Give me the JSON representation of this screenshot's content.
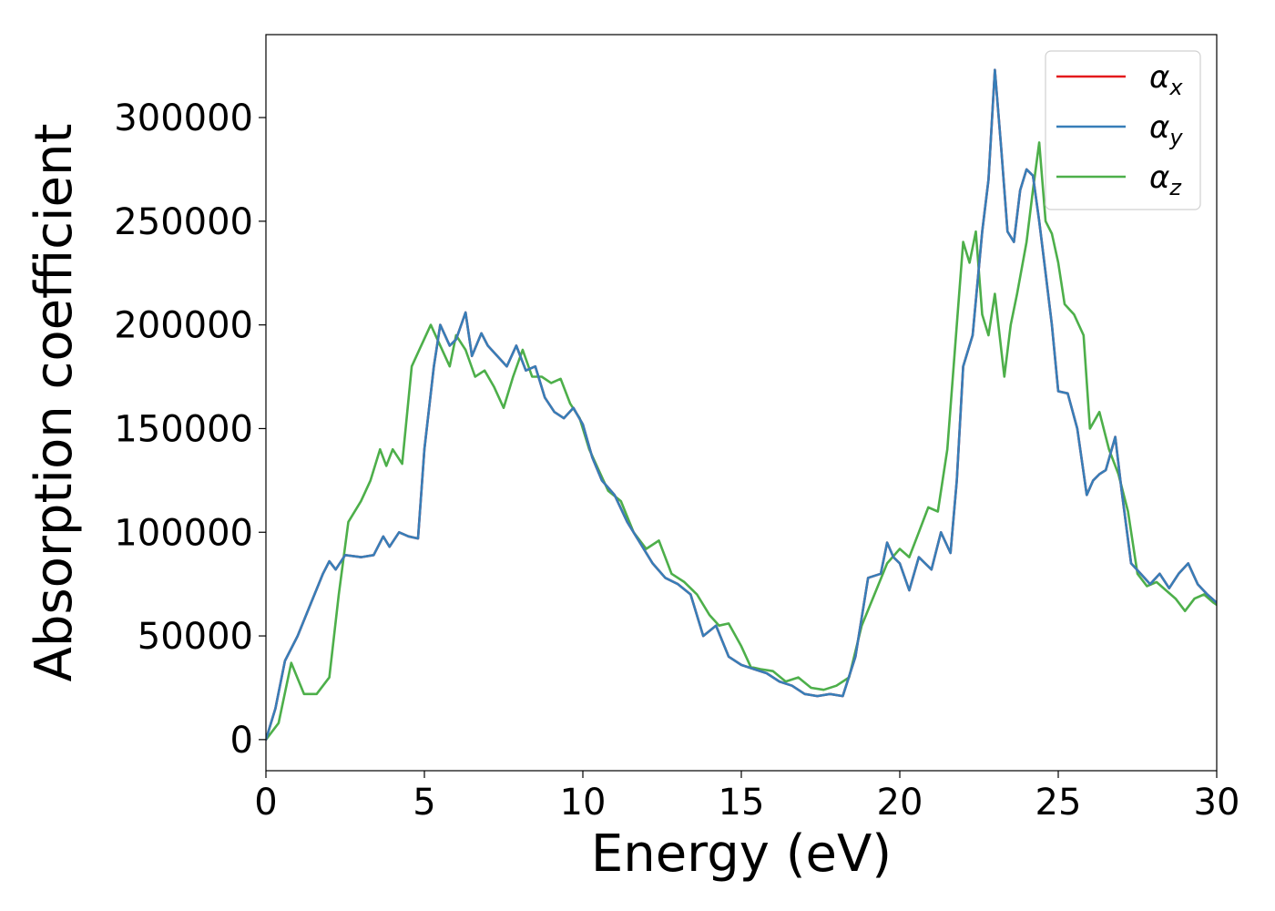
{
  "chart_data": {
    "type": "line",
    "title": "",
    "xlabel": "Energy (eV)",
    "ylabel": "Absorption coefficient",
    "xlim": [
      0,
      30
    ],
    "ylim": [
      -15000,
      340000
    ],
    "xticks": [
      0,
      5,
      10,
      15,
      20,
      25,
      30
    ],
    "xtick_labels": [
      "0",
      "5",
      "10",
      "15",
      "20",
      "25",
      "30"
    ],
    "yticks": [
      0,
      50000,
      100000,
      150000,
      200000,
      250000,
      300000
    ],
    "ytick_labels": [
      "0",
      "50000",
      "100000",
      "150000",
      "200000",
      "250000",
      "300000"
    ],
    "grid": false,
    "legend_position": "top-right",
    "series": [
      {
        "name": "α",
        "subscript": "x",
        "color": "#e41a1c",
        "x": [
          0,
          0.3,
          0.6,
          1.0,
          1.4,
          1.8,
          2.0,
          2.2,
          2.5,
          3.0,
          3.4,
          3.7,
          3.9,
          4.2,
          4.5,
          4.8,
          5.0,
          5.3,
          5.5,
          5.8,
          6.0,
          6.3,
          6.5,
          6.8,
          7.0,
          7.3,
          7.6,
          7.9,
          8.2,
          8.5,
          8.8,
          9.1,
          9.4,
          9.7,
          10.0,
          10.3,
          10.6,
          11.0,
          11.4,
          11.8,
          12.2,
          12.6,
          13.0,
          13.4,
          13.8,
          14.2,
          14.6,
          15.0,
          15.4,
          15.8,
          16.2,
          16.6,
          17.0,
          17.4,
          17.8,
          18.2,
          18.6,
          19.0,
          19.4,
          19.6,
          19.8,
          20.0,
          20.3,
          20.6,
          21.0,
          21.3,
          21.6,
          21.8,
          22.0,
          22.3,
          22.6,
          22.8,
          23.0,
          23.2,
          23.4,
          23.6,
          23.8,
          24.0,
          24.2,
          24.4,
          24.6,
          24.8,
          25.0,
          25.3,
          25.6,
          25.9,
          26.1,
          26.3,
          26.5,
          26.8,
          27.0,
          27.3,
          27.6,
          27.9,
          28.2,
          28.5,
          28.8,
          29.1,
          29.4,
          29.7,
          30.0
        ],
        "values": [
          0,
          15000,
          38000,
          50000,
          65000,
          80000,
          86000,
          82000,
          89000,
          88000,
          89000,
          98000,
          93000,
          100000,
          98000,
          97000,
          140000,
          180000,
          200000,
          190000,
          193000,
          206000,
          185000,
          196000,
          190000,
          185000,
          180000,
          190000,
          178000,
          180000,
          165000,
          158000,
          155000,
          160000,
          152000,
          136000,
          125000,
          118000,
          105000,
          95000,
          85000,
          78000,
          75000,
          70000,
          50000,
          55000,
          40000,
          36000,
          34000,
          32000,
          28000,
          26000,
          22000,
          21000,
          22000,
          21000,
          40000,
          78000,
          80000,
          95000,
          88000,
          85000,
          72000,
          88000,
          82000,
          100000,
          90000,
          125000,
          180000,
          195000,
          245000,
          270000,
          323000,
          285000,
          245000,
          240000,
          265000,
          275000,
          272000,
          250000,
          225000,
          200000,
          168000,
          167000,
          150000,
          118000,
          125000,
          128000,
          130000,
          146000,
          120000,
          85000,
          80000,
          75000,
          80000,
          73000,
          80000,
          85000,
          75000,
          70000,
          66000
        ]
      },
      {
        "name": "α",
        "subscript": "y",
        "color": "#377eb8",
        "x": [
          0,
          0.3,
          0.6,
          1.0,
          1.4,
          1.8,
          2.0,
          2.2,
          2.5,
          3.0,
          3.4,
          3.7,
          3.9,
          4.2,
          4.5,
          4.8,
          5.0,
          5.3,
          5.5,
          5.8,
          6.0,
          6.3,
          6.5,
          6.8,
          7.0,
          7.3,
          7.6,
          7.9,
          8.2,
          8.5,
          8.8,
          9.1,
          9.4,
          9.7,
          10.0,
          10.3,
          10.6,
          11.0,
          11.4,
          11.8,
          12.2,
          12.6,
          13.0,
          13.4,
          13.8,
          14.2,
          14.6,
          15.0,
          15.4,
          15.8,
          16.2,
          16.6,
          17.0,
          17.4,
          17.8,
          18.2,
          18.6,
          19.0,
          19.4,
          19.6,
          19.8,
          20.0,
          20.3,
          20.6,
          21.0,
          21.3,
          21.6,
          21.8,
          22.0,
          22.3,
          22.6,
          22.8,
          23.0,
          23.2,
          23.4,
          23.6,
          23.8,
          24.0,
          24.2,
          24.4,
          24.6,
          24.8,
          25.0,
          25.3,
          25.6,
          25.9,
          26.1,
          26.3,
          26.5,
          26.8,
          27.0,
          27.3,
          27.6,
          27.9,
          28.2,
          28.5,
          28.8,
          29.1,
          29.4,
          29.7,
          30.0
        ],
        "values": [
          0,
          15000,
          38000,
          50000,
          65000,
          80000,
          86000,
          82000,
          89000,
          88000,
          89000,
          98000,
          93000,
          100000,
          98000,
          97000,
          140000,
          180000,
          200000,
          190000,
          193000,
          206000,
          185000,
          196000,
          190000,
          185000,
          180000,
          190000,
          178000,
          180000,
          165000,
          158000,
          155000,
          160000,
          152000,
          136000,
          125000,
          118000,
          105000,
          95000,
          85000,
          78000,
          75000,
          70000,
          50000,
          55000,
          40000,
          36000,
          34000,
          32000,
          28000,
          26000,
          22000,
          21000,
          22000,
          21000,
          40000,
          78000,
          80000,
          95000,
          88000,
          85000,
          72000,
          88000,
          82000,
          100000,
          90000,
          125000,
          180000,
          195000,
          245000,
          270000,
          323000,
          285000,
          245000,
          240000,
          265000,
          275000,
          272000,
          250000,
          225000,
          200000,
          168000,
          167000,
          150000,
          118000,
          125000,
          128000,
          130000,
          146000,
          120000,
          85000,
          80000,
          75000,
          80000,
          73000,
          80000,
          85000,
          75000,
          70000,
          66000
        ]
      },
      {
        "name": "α",
        "subscript": "z",
        "color": "#4daf4a",
        "x": [
          0,
          0.4,
          0.8,
          1.2,
          1.6,
          2.0,
          2.3,
          2.6,
          3.0,
          3.3,
          3.6,
          3.8,
          4.0,
          4.3,
          4.6,
          4.9,
          5.2,
          5.5,
          5.8,
          6.0,
          6.3,
          6.6,
          6.9,
          7.2,
          7.5,
          7.8,
          8.1,
          8.4,
          8.7,
          9.0,
          9.3,
          9.6,
          9.9,
          10.2,
          10.5,
          10.8,
          11.2,
          11.6,
          12.0,
          12.4,
          12.8,
          13.2,
          13.6,
          14.0,
          14.3,
          14.6,
          15.0,
          15.3,
          15.6,
          16.0,
          16.4,
          16.8,
          17.2,
          17.6,
          18.0,
          18.4,
          18.8,
          19.2,
          19.6,
          20.0,
          20.3,
          20.6,
          20.9,
          21.2,
          21.5,
          21.8,
          22.0,
          22.2,
          22.4,
          22.6,
          22.8,
          23.0,
          23.3,
          23.5,
          23.7,
          24.0,
          24.2,
          24.4,
          24.6,
          24.8,
          25.0,
          25.2,
          25.5,
          25.8,
          26.0,
          26.3,
          26.6,
          26.9,
          27.2,
          27.5,
          27.8,
          28.1,
          28.4,
          28.7,
          29.0,
          29.3,
          29.6,
          29.9,
          30.0
        ],
        "values": [
          0,
          8000,
          37000,
          22000,
          22000,
          30000,
          70000,
          105000,
          115000,
          125000,
          140000,
          132000,
          140000,
          133000,
          180000,
          190000,
          200000,
          190000,
          180000,
          195000,
          188000,
          175000,
          178000,
          170000,
          160000,
          175000,
          188000,
          175000,
          175000,
          172000,
          174000,
          162000,
          155000,
          140000,
          130000,
          120000,
          115000,
          100000,
          92000,
          96000,
          80000,
          76000,
          70000,
          60000,
          55000,
          56000,
          45000,
          35000,
          34000,
          33000,
          28000,
          30000,
          25000,
          24000,
          26000,
          30000,
          55000,
          70000,
          85000,
          92000,
          88000,
          100000,
          112000,
          110000,
          140000,
          200000,
          240000,
          230000,
          245000,
          205000,
          195000,
          215000,
          175000,
          200000,
          215000,
          240000,
          265000,
          288000,
          250000,
          244000,
          230000,
          210000,
          205000,
          195000,
          150000,
          158000,
          140000,
          128000,
          110000,
          80000,
          74000,
          76000,
          72000,
          68000,
          62000,
          68000,
          70000,
          66000,
          65000
        ]
      }
    ]
  }
}
